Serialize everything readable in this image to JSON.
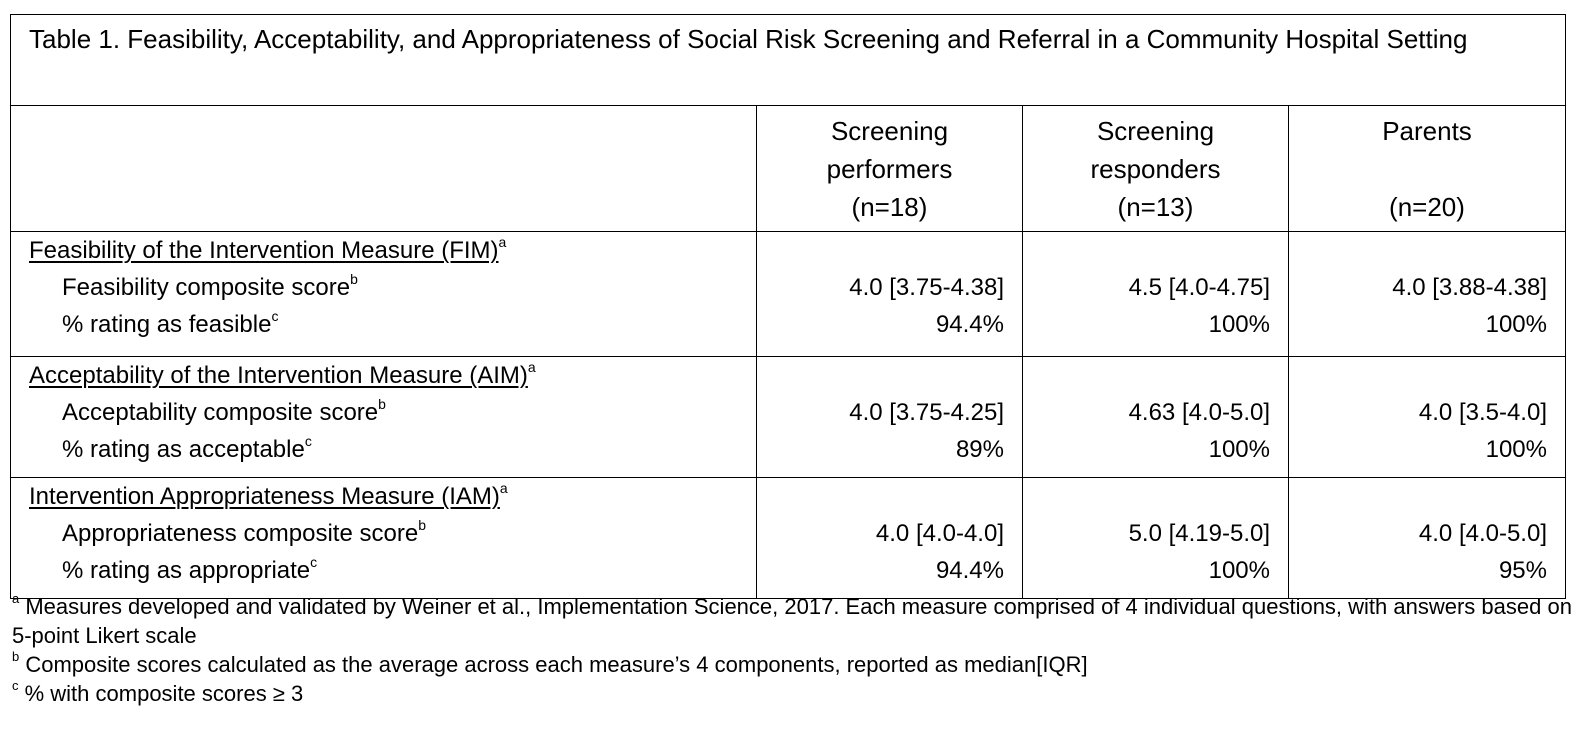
{
  "table": {
    "title": "Table 1. Feasibility, Acceptability, and Appropriateness of Social Risk Screening and Referral in a Community Hospital Setting",
    "columns": [
      {
        "line1": "Screening",
        "line2": "performers",
        "line3": "(n=18)"
      },
      {
        "line1": "Screening",
        "line2": "responders",
        "line3": "(n=13)"
      },
      {
        "line1": "Parents",
        "line2": "",
        "line3": "(n=20)"
      }
    ],
    "sections": [
      {
        "heading": "Feasibility of the Intervention Measure (FIM)",
        "heading_sup": "a",
        "rows": [
          {
            "label": "Feasibility composite score",
            "sup": "b",
            "values": [
              "4.0 [3.75-4.38]",
              "4.5 [4.0-4.75]",
              "4.0 [3.88-4.38]"
            ]
          },
          {
            "label": "% rating as feasible",
            "sup": "c",
            "values": [
              "94.4%",
              "100%",
              "100%"
            ]
          }
        ]
      },
      {
        "heading": "Acceptability of the Intervention Measure (AIM)",
        "heading_sup": "a",
        "rows": [
          {
            "label": "Acceptability composite score",
            "sup": "b",
            "values": [
              "4.0 [3.75-4.25]",
              "4.63 [4.0-5.0]",
              "4.0 [3.5-4.0]"
            ]
          },
          {
            "label": "% rating as acceptable",
            "sup": "c",
            "values": [
              "89%",
              "100%",
              "100%"
            ]
          }
        ]
      },
      {
        "heading": "Intervention Appropriateness Measure (IAM)",
        "heading_sup": "a",
        "rows": [
          {
            "label": "Appropriateness composite score",
            "sup": "b",
            "values": [
              "4.0 [4.0-4.0]",
              "5.0 [4.19-5.0]",
              "4.0 [4.0-5.0]"
            ]
          },
          {
            "label": "% rating as appropriate",
            "sup": "c",
            "values": [
              "94.4%",
              "100%",
              "95%"
            ]
          }
        ]
      }
    ]
  },
  "footnotes": [
    {
      "mark": "a",
      "text": " Measures developed and validated by Weiner et al., Implementation Science, 2017. Each measure comprised of 4 individual questions, with answers based on 5-point Likert scale"
    },
    {
      "mark": "b",
      "text": "  Composite scores calculated as the average across each measure’s 4 components, reported as median[IQR]"
    },
    {
      "mark": "c",
      "text": "  % with composite scores ≥ 3"
    }
  ]
}
